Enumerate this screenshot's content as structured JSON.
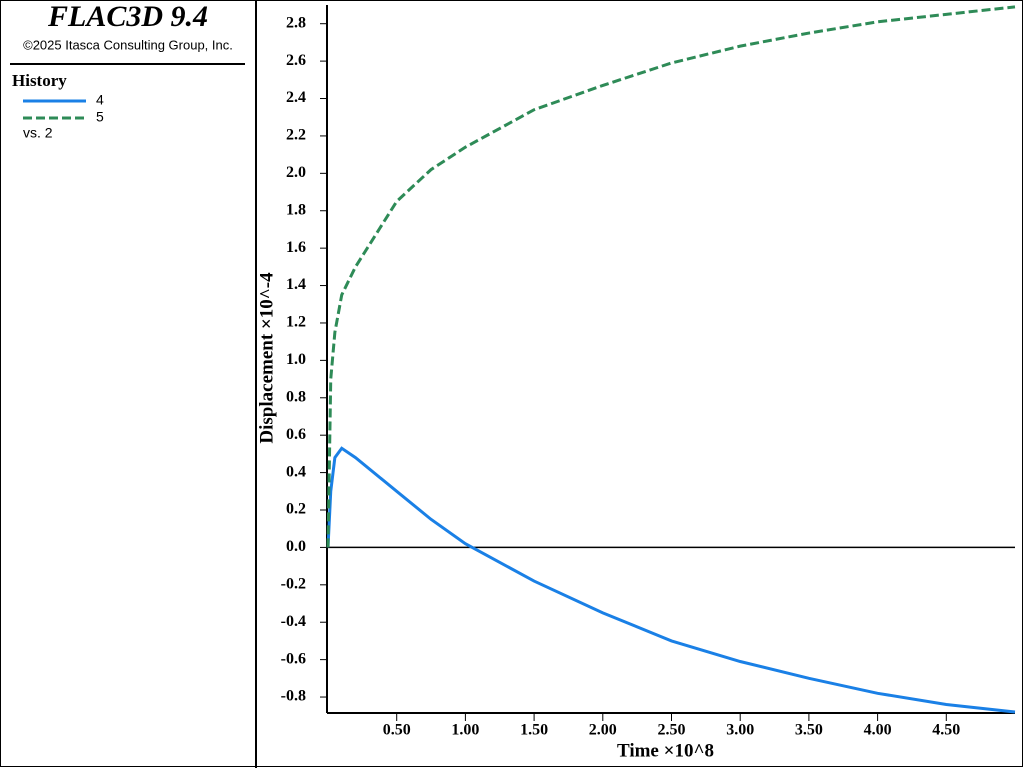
{
  "header": {
    "title": "FLAC3D 9.4",
    "copyright": "©2025 Itasca Consulting Group, Inc."
  },
  "chart_data": {
    "type": "line",
    "legend_title": "History",
    "legend_note": "vs. 2",
    "x_label": "Time ×10^8",
    "y_label": "Displacement ×10^-4",
    "x": [
      0,
      0.02,
      0.05,
      0.1,
      0.2,
      0.5,
      0.75,
      1.0,
      1.5,
      2.0,
      2.5,
      3.0,
      3.5,
      4.0,
      4.5,
      5.0
    ],
    "series": [
      {
        "name": "4",
        "color": "#1a80e6",
        "dashed": false,
        "values": [
          0,
          0.3,
          0.48,
          0.53,
          0.48,
          0.3,
          0.15,
          0.02,
          -0.18,
          -0.35,
          -0.5,
          -0.61,
          -0.7,
          -0.78,
          -0.84,
          -0.88
        ]
      },
      {
        "name": "5",
        "color": "#2e8b57",
        "dashed": true,
        "values": [
          0,
          0.9,
          1.15,
          1.35,
          1.5,
          1.85,
          2.02,
          2.14,
          2.34,
          2.47,
          2.59,
          2.68,
          2.75,
          2.81,
          2.85,
          2.89
        ]
      }
    ],
    "xlim": [
      0,
      5.0
    ],
    "ylim": [
      -0.88,
      2.9
    ],
    "xticks": [
      {
        "value": 0.5,
        "label": "0.50"
      },
      {
        "value": 1,
        "label": "1.00"
      },
      {
        "value": 1.5,
        "label": "1.50"
      },
      {
        "value": 2,
        "label": "2.00"
      },
      {
        "value": 2.5,
        "label": "2.50"
      },
      {
        "value": 3,
        "label": "3.00"
      },
      {
        "value": 3.5,
        "label": "3.50"
      },
      {
        "value": 4,
        "label": "4.00"
      },
      {
        "value": 4.5,
        "label": "4.50"
      }
    ],
    "yticks": [
      -0.8,
      -0.6,
      -0.4,
      -0.2,
      {
        "value": 0,
        "label": "0.0"
      },
      0.2,
      0.4,
      0.6,
      0.8,
      {
        "value": 1,
        "label": "1.0"
      },
      1.2,
      1.4,
      1.6,
      1.8,
      {
        "value": 2,
        "label": "2.0"
      },
      2.2,
      2.4,
      2.6,
      2.8
    ],
    "zero_line": true
  }
}
